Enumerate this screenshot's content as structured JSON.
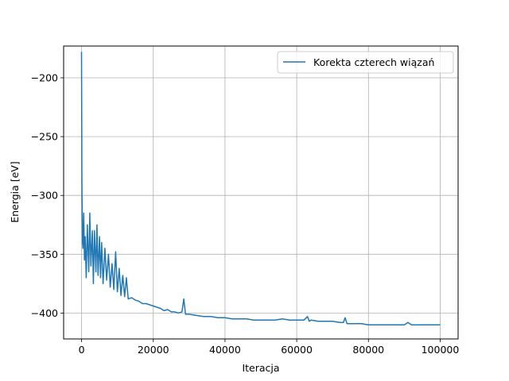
{
  "chart_data": {
    "type": "line",
    "title": "",
    "xlabel": "Iteracja",
    "ylabel": "Energia [eV]",
    "xlim": [
      -5000,
      105000
    ],
    "ylim": [
      -422,
      -173
    ],
    "xticks": [
      0,
      20000,
      40000,
      60000,
      80000,
      100000
    ],
    "xtick_labels": [
      "0",
      "20000",
      "40000",
      "60000",
      "80000",
      "100000"
    ],
    "yticks": [
      -200,
      -250,
      -300,
      -350,
      -400
    ],
    "ytick_labels": [
      "−200",
      "−250",
      "−300",
      "−350",
      "−400"
    ],
    "grid": true,
    "legend_position": "upper right",
    "color": "#1f77b4",
    "series": [
      {
        "name": "Korekta czterech wiązań",
        "x": [
          0,
          100,
          250,
          400,
          600,
          800,
          1000,
          1300,
          1600,
          2000,
          2300,
          2600,
          3000,
          3300,
          3600,
          4000,
          4300,
          4600,
          5000,
          5300,
          5600,
          6000,
          6500,
          7000,
          7500,
          8000,
          8500,
          9000,
          9500,
          10000,
          10500,
          11000,
          11500,
          12000,
          12500,
          13000,
          14000,
          15000,
          16000,
          17000,
          18000,
          19000,
          20000,
          21000,
          22000,
          23000,
          24000,
          25000,
          26000,
          27000,
          28000,
          28500,
          29000,
          30000,
          32000,
          34000,
          36000,
          38000,
          40000,
          42000,
          44000,
          46000,
          48000,
          50000,
          52000,
          54000,
          56000,
          58000,
          60000,
          62000,
          63000,
          63500,
          64000,
          66000,
          68000,
          70000,
          72000,
          73000,
          73500,
          74000,
          76000,
          78000,
          80000,
          82000,
          84000,
          86000,
          88000,
          90000,
          91000,
          92000,
          94000,
          96000,
          98000,
          100000
        ],
        "y": [
          -178,
          -290,
          -340,
          -345,
          -315,
          -355,
          -335,
          -370,
          -325,
          -365,
          -315,
          -360,
          -330,
          -375,
          -330,
          -365,
          -325,
          -368,
          -335,
          -370,
          -340,
          -375,
          -345,
          -372,
          -350,
          -378,
          -358,
          -380,
          -348,
          -382,
          -362,
          -385,
          -368,
          -386,
          -370,
          -388,
          -387,
          -389,
          -390,
          -392,
          -392,
          -393,
          -394,
          -395,
          -396,
          -398,
          -397,
          -399,
          -399,
          -400,
          -399,
          -388,
          -401,
          -401,
          -402,
          -403,
          -403,
          -404,
          -404,
          -405,
          -405,
          -405,
          -406,
          -406,
          -406,
          -406,
          -405,
          -406,
          -406,
          -406,
          -403,
          -407,
          -406,
          -407,
          -407,
          -407,
          -408,
          -408,
          -404,
          -409,
          -409,
          -409,
          -410,
          -410,
          -410,
          -410,
          -410,
          -410,
          -408,
          -410,
          -410,
          -410,
          -410,
          -410
        ]
      }
    ]
  }
}
